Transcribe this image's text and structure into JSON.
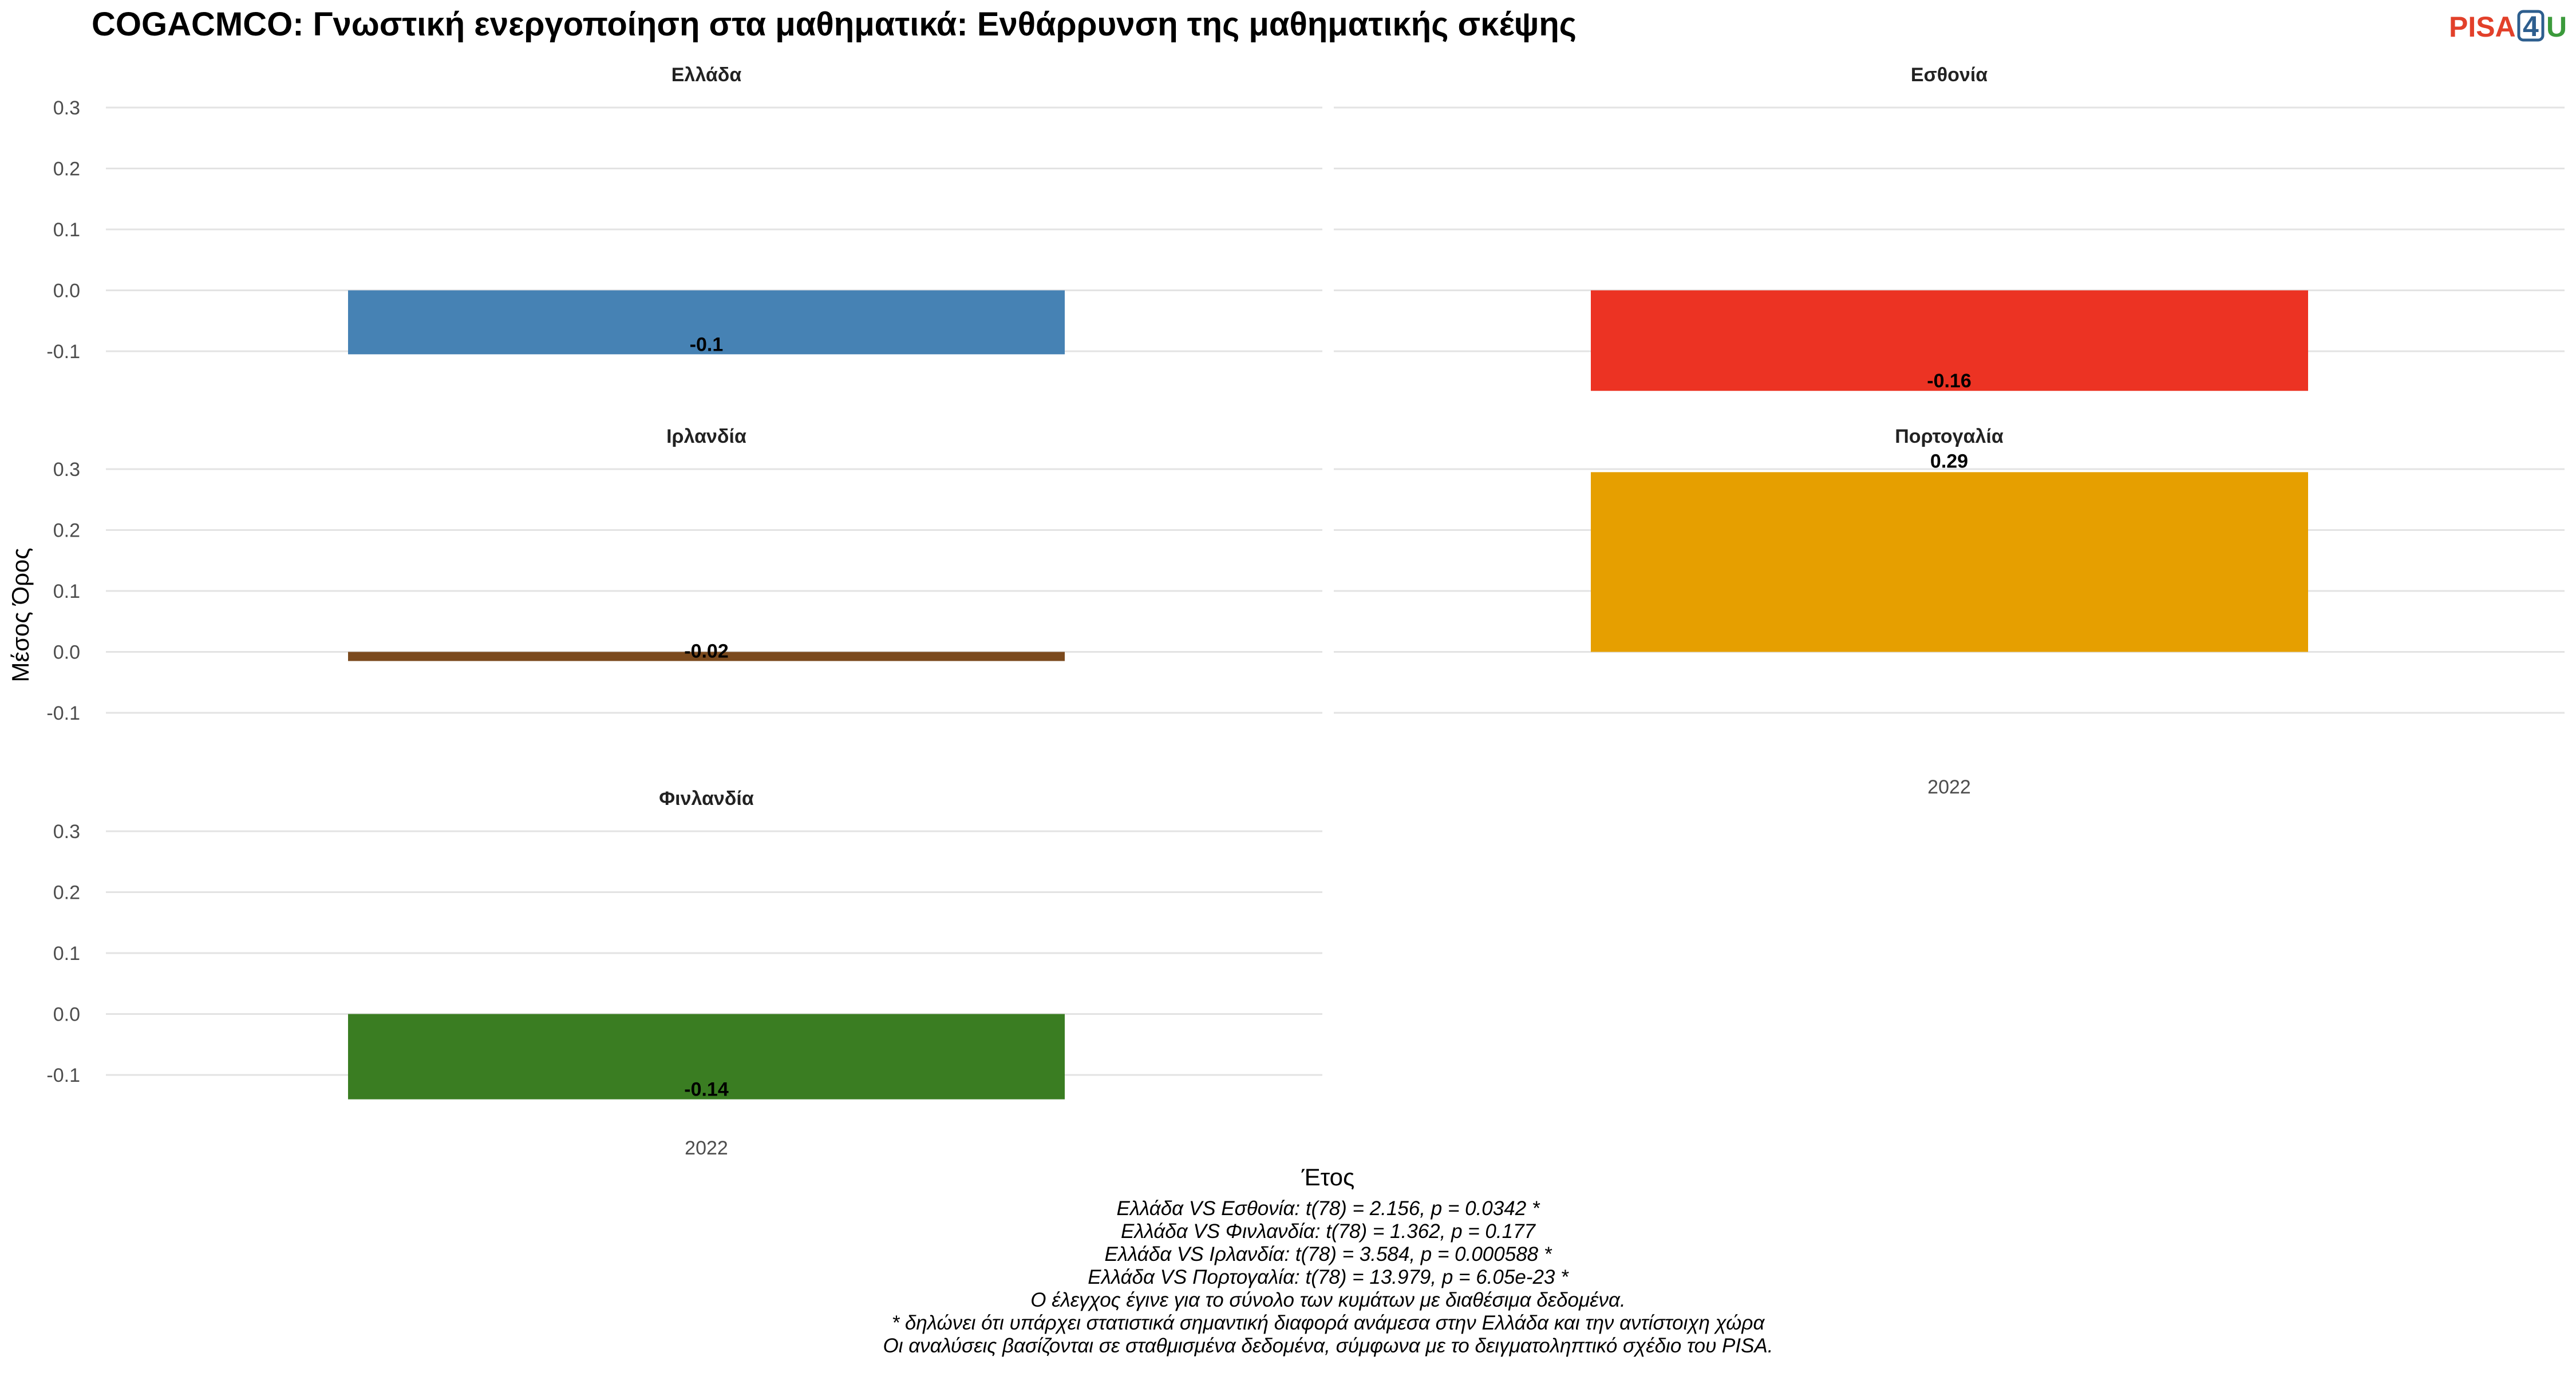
{
  "logo": {
    "pisa": "PISA",
    "four": "4",
    "u": "U",
    "pisa_color": "#e2402a",
    "four_color": "#2d5e8e",
    "u_color": "#3b9a3b"
  },
  "chart_data": {
    "type": "bar",
    "title": "COGACMCO: Γνωστική ενεργοποίηση στα μαθηματικά: Ενθάρρυνση της μαθηματικής σκέψης",
    "xlabel": "Έτος",
    "ylabel": "Μέσος Όρος",
    "ylim": [
      -0.1,
      0.3
    ],
    "yticks": [
      "0.3",
      "0.2",
      "0.1",
      "0.0",
      "-0.1"
    ],
    "grid": true,
    "categories": [
      "2022"
    ],
    "facets": [
      {
        "name": "Ελλάδα",
        "category": "2022",
        "value": -0.105,
        "label": "-0.1",
        "color": "#4682b4"
      },
      {
        "name": "Εσθονία",
        "category": "2022",
        "value": -0.165,
        "label": "-0.16",
        "color": "#ec3323"
      },
      {
        "name": "Ιρλανδία",
        "category": "2022",
        "value": -0.015,
        "label": "-0.02",
        "color": "#7b4a1e"
      },
      {
        "name": "Πορτογαλία",
        "category": "2022",
        "value": 0.295,
        "label": "0.29",
        "color": "#e69f00"
      },
      {
        "name": "Φινλανδία",
        "category": "2022",
        "value": -0.14,
        "label": "-0.14",
        "color": "#3a7d22"
      }
    ],
    "caption_lines": [
      "Ελλάδα VS Εσθονία: t(78) = 2.156, p = 0.0342 *",
      "Ελλάδα VS Φινλανδία: t(78) = 1.362, p = 0.177",
      "Ελλάδα VS Ιρλανδία: t(78) = 3.584, p = 0.000588 *",
      "Ελλάδα VS Πορτογαλία: t(78) = 13.979, p = 6.05e-23 *",
      "Ο έλεγχος έγινε για το σύνολο των κυμάτων με διαθέσιμα δεδομένα.",
      "* δηλώνει ότι υπάρχει στατιστικά σημαντική διαφορά ανάμεσα στην Ελλάδα και την αντίστοιχη χώρα",
      "Οι αναλύσεις βασίζονται σε σταθμισμένα δεδομένα, σύμφωνα με το δειγματοληπτικό σχέδιο του PISA."
    ]
  }
}
